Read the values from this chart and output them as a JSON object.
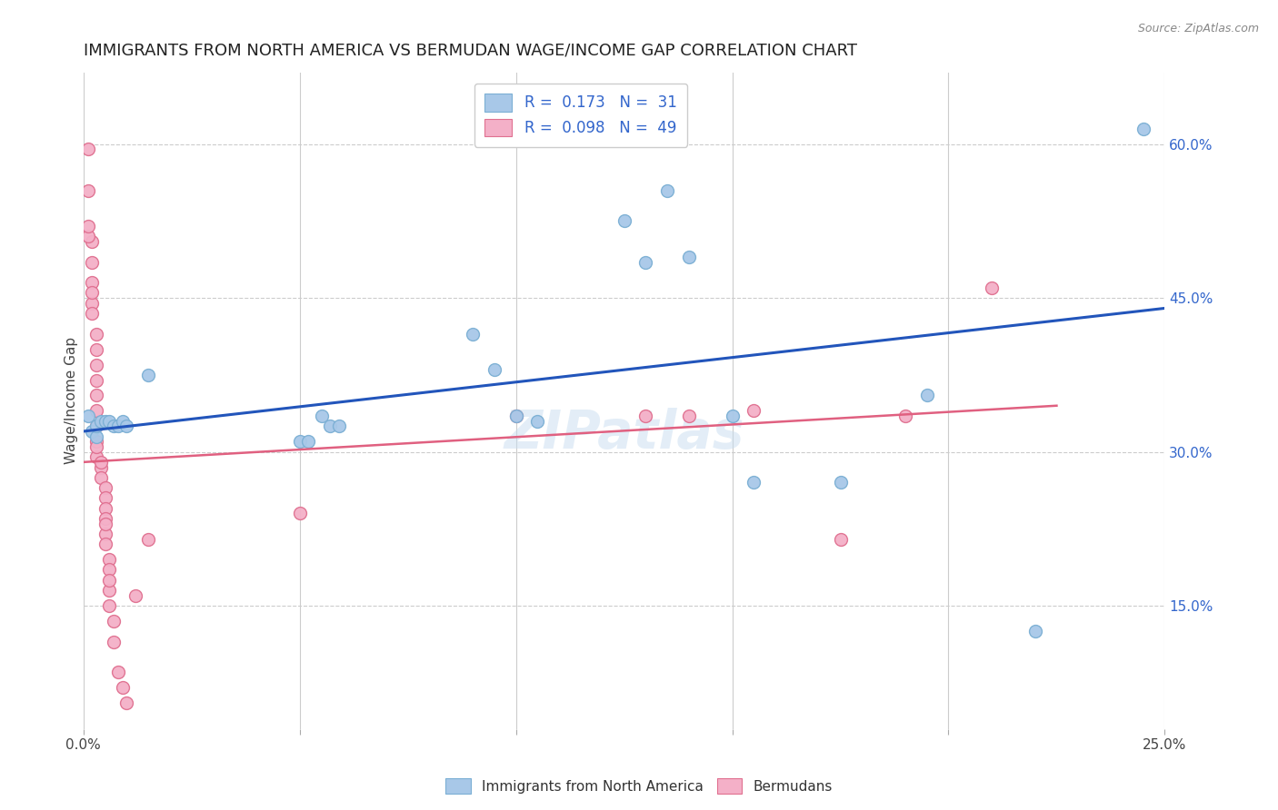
{
  "title": "IMMIGRANTS FROM NORTH AMERICA VS BERMUDAN WAGE/INCOME GAP CORRELATION CHART",
  "source": "Source: ZipAtlas.com",
  "ylabel": "Wage/Income Gap",
  "xlim": [
    0.0,
    0.25
  ],
  "ylim": [
    0.03,
    0.67
  ],
  "xticks": [
    0.0,
    0.05,
    0.1,
    0.15,
    0.2,
    0.25
  ],
  "xtick_labels": [
    "0.0%",
    "",
    "",
    "",
    "",
    "25.0%"
  ],
  "yticks_right": [
    0.15,
    0.3,
    0.45,
    0.6
  ],
  "ytick_labels_right": [
    "15.0%",
    "30.0%",
    "45.0%",
    "60.0%"
  ],
  "legend_label_blue": "R =  0.173   N =  31",
  "legend_label_pink": "R =  0.098   N =  49",
  "blue_scatter": [
    [
      0.001,
      0.335
    ],
    [
      0.002,
      0.32
    ],
    [
      0.003,
      0.315
    ],
    [
      0.003,
      0.325
    ],
    [
      0.004,
      0.33
    ],
    [
      0.005,
      0.33
    ],
    [
      0.006,
      0.33
    ],
    [
      0.007,
      0.325
    ],
    [
      0.008,
      0.325
    ],
    [
      0.009,
      0.33
    ],
    [
      0.01,
      0.325
    ],
    [
      0.015,
      0.375
    ],
    [
      0.05,
      0.31
    ],
    [
      0.052,
      0.31
    ],
    [
      0.055,
      0.335
    ],
    [
      0.057,
      0.325
    ],
    [
      0.059,
      0.325
    ],
    [
      0.09,
      0.415
    ],
    [
      0.095,
      0.38
    ],
    [
      0.1,
      0.335
    ],
    [
      0.105,
      0.33
    ],
    [
      0.125,
      0.525
    ],
    [
      0.13,
      0.485
    ],
    [
      0.135,
      0.555
    ],
    [
      0.14,
      0.49
    ],
    [
      0.15,
      0.335
    ],
    [
      0.155,
      0.27
    ],
    [
      0.175,
      0.27
    ],
    [
      0.195,
      0.355
    ],
    [
      0.22,
      0.125
    ],
    [
      0.245,
      0.615
    ]
  ],
  "pink_scatter": [
    [
      0.001,
      0.595
    ],
    [
      0.001,
      0.555
    ],
    [
      0.002,
      0.505
    ],
    [
      0.002,
      0.485
    ],
    [
      0.002,
      0.465
    ],
    [
      0.002,
      0.445
    ],
    [
      0.002,
      0.435
    ],
    [
      0.003,
      0.415
    ],
    [
      0.003,
      0.4
    ],
    [
      0.003,
      0.385
    ],
    [
      0.003,
      0.37
    ],
    [
      0.003,
      0.355
    ],
    [
      0.003,
      0.34
    ],
    [
      0.003,
      0.325
    ],
    [
      0.003,
      0.31
    ],
    [
      0.003,
      0.295
    ],
    [
      0.004,
      0.285
    ],
    [
      0.004,
      0.275
    ],
    [
      0.005,
      0.265
    ],
    [
      0.005,
      0.255
    ],
    [
      0.005,
      0.245
    ],
    [
      0.005,
      0.235
    ],
    [
      0.005,
      0.22
    ],
    [
      0.005,
      0.21
    ],
    [
      0.006,
      0.195
    ],
    [
      0.006,
      0.185
    ],
    [
      0.006,
      0.165
    ],
    [
      0.006,
      0.15
    ],
    [
      0.007,
      0.135
    ],
    [
      0.007,
      0.115
    ],
    [
      0.008,
      0.085
    ],
    [
      0.009,
      0.07
    ],
    [
      0.01,
      0.055
    ],
    [
      0.012,
      0.16
    ],
    [
      0.015,
      0.215
    ],
    [
      0.05,
      0.24
    ],
    [
      0.1,
      0.335
    ],
    [
      0.13,
      0.335
    ],
    [
      0.14,
      0.335
    ],
    [
      0.155,
      0.34
    ],
    [
      0.175,
      0.215
    ],
    [
      0.19,
      0.335
    ],
    [
      0.21,
      0.46
    ],
    [
      0.001,
      0.51
    ],
    [
      0.001,
      0.52
    ],
    [
      0.002,
      0.455
    ],
    [
      0.003,
      0.305
    ],
    [
      0.004,
      0.29
    ],
    [
      0.005,
      0.23
    ],
    [
      0.006,
      0.175
    ]
  ],
  "blue_line_x": [
    0.0,
    0.25
  ],
  "blue_line_y": [
    0.32,
    0.44
  ],
  "pink_line_x": [
    0.0,
    0.225
  ],
  "pink_line_y": [
    0.29,
    0.345
  ],
  "watermark": "ZIPatlas",
  "scatter_size": 100,
  "blue_color": "#a8c8e8",
  "blue_edge": "#7bafd4",
  "pink_color": "#f4b0c8",
  "pink_edge": "#e07090",
  "grid_color": "#cccccc",
  "title_fontsize": 13,
  "axis_label_fontsize": 11,
  "tick_fontsize": 11
}
